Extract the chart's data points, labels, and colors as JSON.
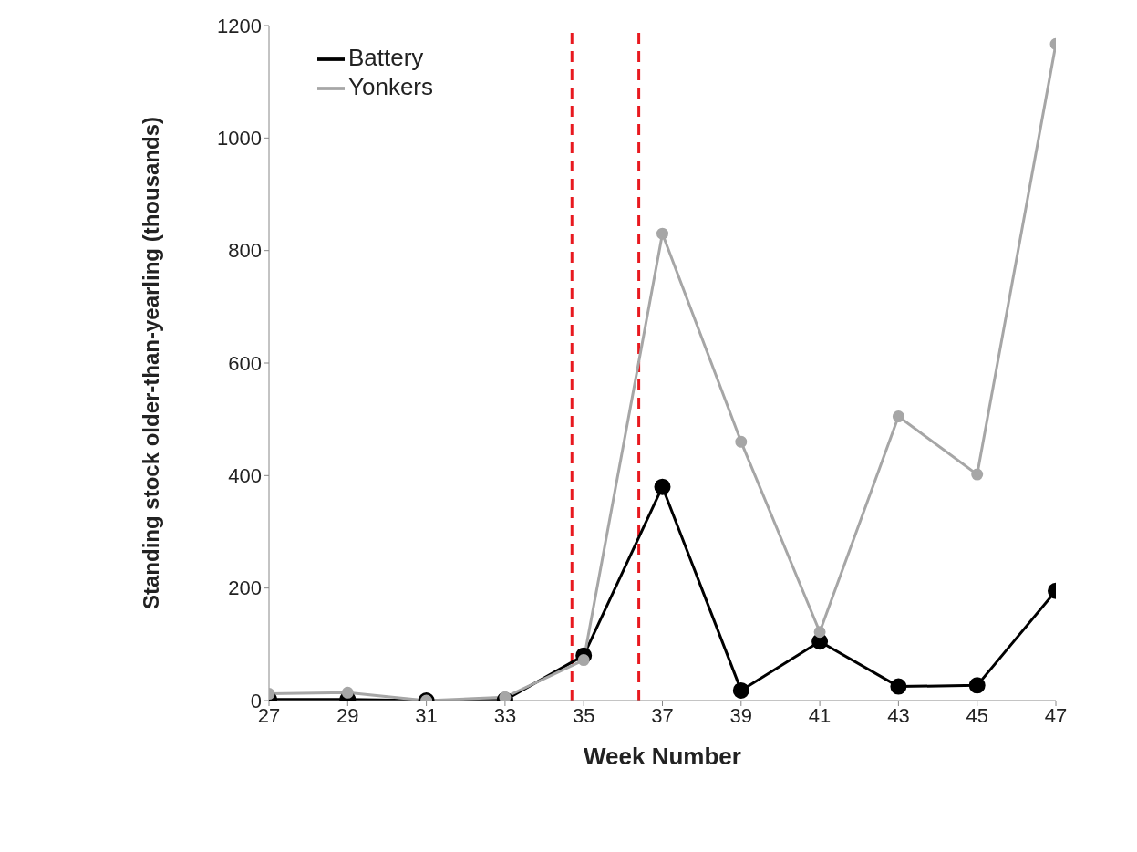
{
  "chart_data": {
    "type": "line",
    "xlabel": "Week Number",
    "ylabel": "Standing stock older-than-yearling (thousands)",
    "x": [
      27,
      29,
      31,
      33,
      35,
      37,
      39,
      41,
      43,
      45,
      47
    ],
    "series": [
      {
        "name": "Battery",
        "color": "#000000",
        "values": [
          2,
          2,
          0,
          1,
          80,
          380,
          18,
          105,
          25,
          27,
          195
        ]
      },
      {
        "name": "Yonkers",
        "color": "#a6a6a6",
        "values": [
          12,
          14,
          0,
          6,
          72,
          830,
          460,
          122,
          505,
          402,
          1167
        ]
      }
    ],
    "xlim": [
      27,
      47
    ],
    "xticks": [
      27,
      29,
      31,
      33,
      35,
      37,
      39,
      41,
      43,
      45,
      47
    ],
    "ylim": [
      0,
      1200
    ],
    "yticks": [
      0,
      200,
      400,
      600,
      800,
      1000,
      1200
    ],
    "ref_lines": [
      {
        "axis": "x",
        "value": 34.7,
        "color": "#e8191f",
        "line_style": "dashed"
      },
      {
        "axis": "x",
        "value": 36.4,
        "color": "#e8191f",
        "line_style": "dashed"
      }
    ],
    "grid": false,
    "legend": "top left",
    "marker": "circle",
    "line_style": "solid"
  }
}
